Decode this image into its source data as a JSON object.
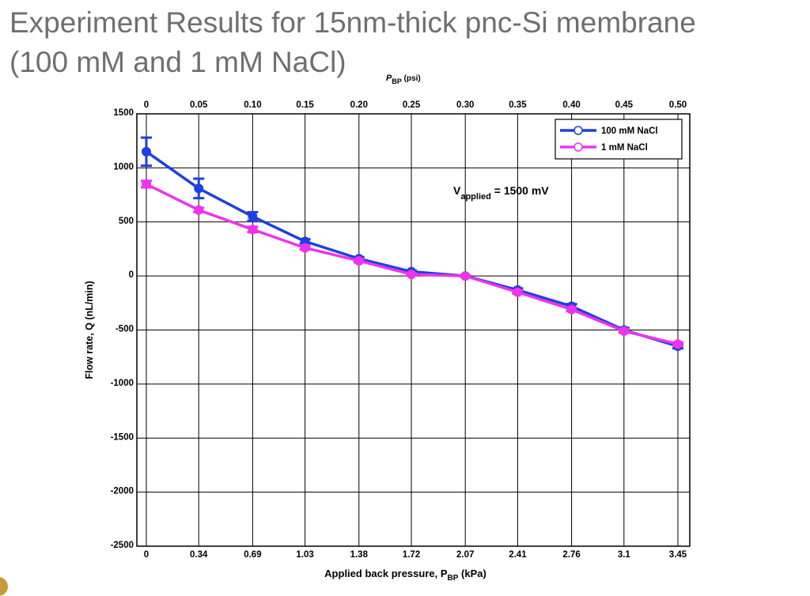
{
  "slide": {
    "title_line1": "Experiment Results for 15nm-thick pnc-Si membrane",
    "title_line2": "(100 mM and 1 mM NaCl)"
  },
  "chart_data": {
    "type": "line",
    "xlabel_main": "Applied back pressure, P",
    "xlabel_sub": "BP",
    "xlabel_unit": " (kPa)",
    "x2label_main": "P",
    "x2label_sub": "BP",
    "x2label_unit": " (psi)",
    "ylabel": "Flow rate, Q (nL/min)",
    "x": [
      0,
      0.34,
      0.69,
      1.03,
      1.38,
      1.72,
      2.07,
      2.41,
      2.76,
      3.1,
      3.45
    ],
    "x_tick_labels": [
      "0",
      "0.34",
      "0.69",
      "1.03",
      "1.38",
      "1.72",
      "2.07",
      "2.41",
      "2.76",
      "3.1",
      "3.45"
    ],
    "x2_tick_labels": [
      "0",
      "0.05",
      "0.10",
      "0.15",
      "0.20",
      "0.25",
      "0.30",
      "0.35",
      "0.40",
      "0.45",
      "0.50"
    ],
    "ylim": [
      -2500,
      1500
    ],
    "y_ticks": [
      1500,
      1000,
      500,
      0,
      -500,
      -1000,
      -1500,
      -2000,
      -2500
    ],
    "grid": true,
    "legend_position": "top-right",
    "series": [
      {
        "name": "100 mM NaCl",
        "color": "#1f3fe0",
        "marker": "circle",
        "values": [
          1150,
          810,
          550,
          320,
          160,
          40,
          0,
          -130,
          -280,
          -500,
          -650
        ],
        "errors": [
          130,
          90,
          40,
          20,
          15,
          10,
          5,
          15,
          20,
          20,
          20
        ]
      },
      {
        "name": "1 mM NaCl",
        "color": "#ee33ee",
        "marker": "circle",
        "values": [
          850,
          610,
          430,
          260,
          140,
          15,
          0,
          -150,
          -310,
          -510,
          -630
        ],
        "errors": [
          30,
          20,
          25,
          15,
          15,
          10,
          5,
          15,
          15,
          15,
          15
        ]
      }
    ],
    "annotation": {
      "main": "V",
      "sub": "applied",
      "rest": " = 1500 mV"
    }
  }
}
